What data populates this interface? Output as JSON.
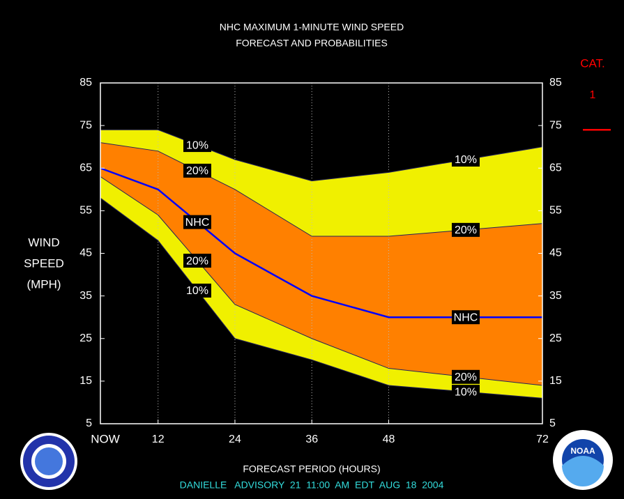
{
  "chart_data": {
    "type": "probability-bands",
    "title": [
      "NHC MAXIMUM 1-MINUTE WIND SPEED",
      "FORECAST AND PROBABILITIES"
    ],
    "ylabel": [
      "WIND",
      "SPEED",
      "(MPH)"
    ],
    "xlabel": "FORECAST PERIOD (HOURS)",
    "footer": "DANIELLE   ADVISORY  21  11:00  AM  EDT  AUG  18  2004",
    "x": [
      3,
      12,
      24,
      36,
      48,
      72
    ],
    "series": [
      {
        "name": "10%",
        "color": "#22225a",
        "fill": "#f0f000",
        "values": [
          74,
          74,
          67,
          62,
          64,
          70
        ]
      },
      {
        "name": "20%",
        "color": "#22225a",
        "fill": "#ff8000",
        "values": [
          71,
          69,
          60,
          49,
          49,
          52
        ]
      },
      {
        "name": "NHC",
        "color": "#0000ff",
        "values": [
          65,
          60,
          45,
          35,
          30,
          30
        ]
      },
      {
        "name": "20%",
        "color": "#22225a",
        "values": [
          63,
          54,
          33,
          25,
          18,
          14
        ]
      },
      {
        "name": "10%",
        "color": "#22225a",
        "values": [
          58,
          48,
          25,
          20,
          14,
          11
        ]
      }
    ],
    "xlim": [
      3,
      72
    ],
    "xticks": [
      {
        "value": 3,
        "label": "NOW"
      },
      12,
      24,
      36,
      48,
      72
    ],
    "ylim": [
      5,
      85
    ],
    "yticks": [
      5,
      15,
      25,
      35,
      45,
      55,
      65,
      75,
      85
    ],
    "y2lim": [
      5,
      85
    ],
    "y2ticks": [
      5,
      15,
      25,
      35,
      45,
      55,
      65,
      75,
      85
    ],
    "grid": true,
    "category": {
      "label": "CAT.",
      "name": "1",
      "value": 74,
      "color": "#ff0000"
    },
    "logo_text": "NOAA"
  }
}
